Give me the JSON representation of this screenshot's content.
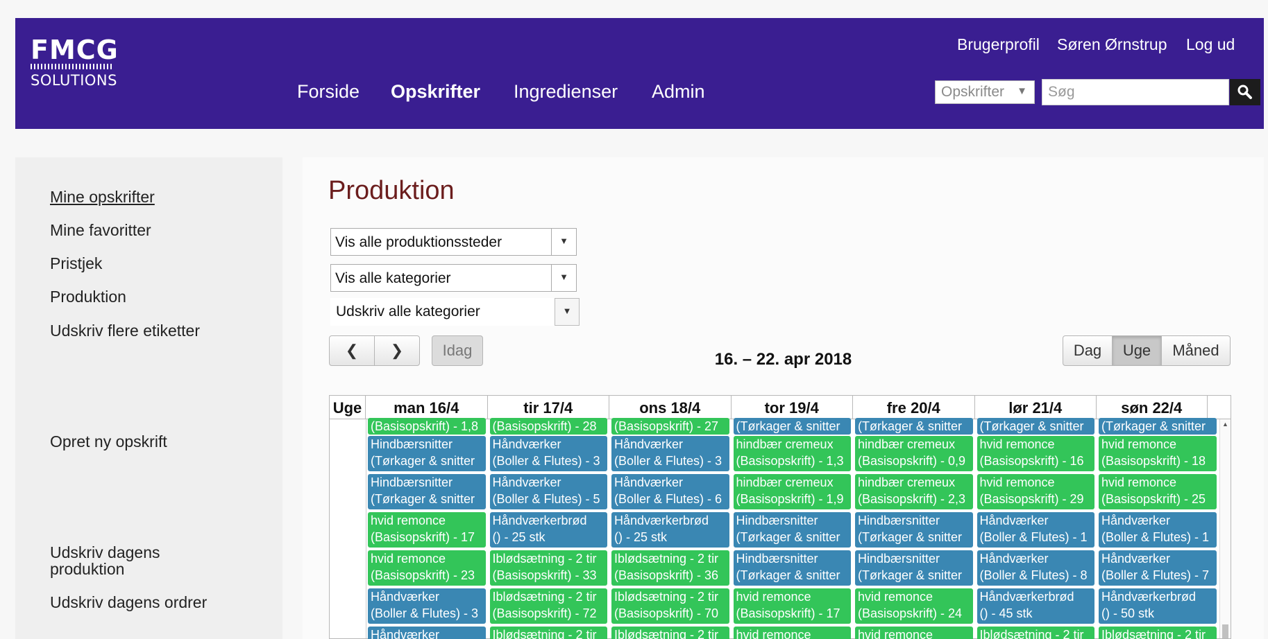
{
  "header": {
    "logo_line1": "FMCG",
    "logo_line2": "SOLUTIONS",
    "nav": [
      "Forside",
      "Opskrifter",
      "Ingredienser",
      "Admin"
    ],
    "active_nav": "Opskrifter",
    "user_links": [
      "Brugerprofil",
      "Søren Ørnstrup",
      "Log ud"
    ],
    "search_scope": "Opskrifter",
    "search_placeholder": "Søg",
    "colors": {
      "bar": "#3a1e91"
    }
  },
  "sidebar": {
    "items": [
      "Mine opskrifter",
      "Mine favoritter",
      "Pristjek",
      "Produktion",
      "Udskriv flere etiketter"
    ],
    "create": "Opret ny opskrift",
    "print_production": "Udskriv dagens produktion",
    "print_orders": "Udskriv dagens ordrer"
  },
  "main": {
    "title": "Produktion",
    "filters": [
      "Vis alle produktionssteder",
      "Vis alle kategorier"
    ],
    "print_filter": "Udskriv alle kategorier",
    "today": "Idag",
    "views": [
      "Dag",
      "Uge",
      "Måned"
    ],
    "active_view": "Uge",
    "range": "16. – 22. apr 2018"
  },
  "calendar": {
    "week_label": "Uge",
    "days": [
      "man 16/4",
      "tir 17/4",
      "ons 18/4",
      "tor 19/4",
      "fre 20/4",
      "lør 21/4",
      "søn 22/4"
    ],
    "colors": {
      "green": "#33c559",
      "blue": "#3a87b3"
    },
    "columns": [
      [
        {
          "c": "green",
          "l1": "(Basisopskrift) - 1,8"
        },
        {
          "c": "blue",
          "l1": "Hindbærsnitter",
          "l2": "(Tørkager & snitter"
        },
        {
          "c": "blue",
          "l1": "Hindbærsnitter",
          "l2": "(Tørkager & snitter"
        },
        {
          "c": "green",
          "l1": "hvid remonce",
          "l2": "(Basisopskrift) - 17"
        },
        {
          "c": "green",
          "l1": "hvid remonce",
          "l2": "(Basisopskrift) - 23"
        },
        {
          "c": "blue",
          "l1": "Håndværker",
          "l2": "(Boller & Flutes) - 3"
        },
        {
          "c": "blue",
          "l1": "Håndværker"
        }
      ],
      [
        {
          "c": "green",
          "l1": "(Basisopskrift) - 28"
        },
        {
          "c": "blue",
          "l1": "Håndværker",
          "l2": "(Boller & Flutes) - 3"
        },
        {
          "c": "blue",
          "l1": "Håndværker",
          "l2": "(Boller & Flutes) - 5"
        },
        {
          "c": "blue",
          "l1": "Håndværkerbrød",
          "l2": "() - 25 stk"
        },
        {
          "c": "green",
          "l1": "Iblødsætning - 2 tir",
          "l2": "(Basisopskrift) - 33"
        },
        {
          "c": "green",
          "l1": "Iblødsætning - 2 tir",
          "l2": "(Basisopskrift) - 72"
        },
        {
          "c": "green",
          "l1": "Iblødsætning - 2 tir"
        }
      ],
      [
        {
          "c": "green",
          "l1": "(Basisopskrift) - 27"
        },
        {
          "c": "blue",
          "l1": "Håndværker",
          "l2": "(Boller & Flutes) - 3"
        },
        {
          "c": "blue",
          "l1": "Håndværker",
          "l2": "(Boller & Flutes) - 6"
        },
        {
          "c": "blue",
          "l1": "Håndværkerbrød",
          "l2": "() - 25 stk"
        },
        {
          "c": "green",
          "l1": "Iblødsætning - 2 tir",
          "l2": "(Basisopskrift) - 36"
        },
        {
          "c": "green",
          "l1": "Iblødsætning - 2 tir",
          "l2": "(Basisopskrift) - 70"
        },
        {
          "c": "green",
          "l1": "Iblødsætning - 2 tir"
        }
      ],
      [
        {
          "c": "blue",
          "l1": "(Tørkager & snitter"
        },
        {
          "c": "green",
          "l1": "hindbær cremeux",
          "l2": "(Basisopskrift) - 1,3"
        },
        {
          "c": "green",
          "l1": "hindbær cremeux",
          "l2": "(Basisopskrift) - 1,9"
        },
        {
          "c": "blue",
          "l1": "Hindbærsnitter",
          "l2": "(Tørkager & snitter"
        },
        {
          "c": "blue",
          "l1": "Hindbærsnitter",
          "l2": "(Tørkager & snitter"
        },
        {
          "c": "green",
          "l1": "hvid remonce",
          "l2": "(Basisopskrift) - 17"
        },
        {
          "c": "green",
          "l1": "hvid remonce"
        }
      ],
      [
        {
          "c": "blue",
          "l1": "(Tørkager & snitter"
        },
        {
          "c": "green",
          "l1": "hindbær cremeux",
          "l2": "(Basisopskrift) - 0,9"
        },
        {
          "c": "green",
          "l1": "hindbær cremeux",
          "l2": "(Basisopskrift) - 2,3"
        },
        {
          "c": "blue",
          "l1": "Hindbærsnitter",
          "l2": "(Tørkager & snitter"
        },
        {
          "c": "blue",
          "l1": "Hindbærsnitter",
          "l2": "(Tørkager & snitter"
        },
        {
          "c": "green",
          "l1": "hvid remonce",
          "l2": "(Basisopskrift) - 24"
        },
        {
          "c": "green",
          "l1": "hvid remonce"
        }
      ],
      [
        {
          "c": "blue",
          "l1": "(Tørkager & snitter"
        },
        {
          "c": "green",
          "l1": "hvid remonce",
          "l2": "(Basisopskrift) - 16"
        },
        {
          "c": "green",
          "l1": "hvid remonce",
          "l2": "(Basisopskrift) - 29"
        },
        {
          "c": "blue",
          "l1": "Håndværker",
          "l2": "(Boller & Flutes) - 1"
        },
        {
          "c": "blue",
          "l1": "Håndværker",
          "l2": "(Boller & Flutes) - 8"
        },
        {
          "c": "blue",
          "l1": "Håndværkerbrød",
          "l2": "() - 45 stk"
        },
        {
          "c": "green",
          "l1": "Iblødsætning - 2 tir"
        }
      ],
      [
        {
          "c": "blue",
          "l1": "(Tørkager & snitter"
        },
        {
          "c": "green",
          "l1": "hvid remonce",
          "l2": "(Basisopskrift) - 18"
        },
        {
          "c": "green",
          "l1": "hvid remonce",
          "l2": "(Basisopskrift) - 25"
        },
        {
          "c": "blue",
          "l1": "Håndværker",
          "l2": "(Boller & Flutes) - 1"
        },
        {
          "c": "blue",
          "l1": "Håndværker",
          "l2": "(Boller & Flutes) - 7"
        },
        {
          "c": "blue",
          "l1": "Håndværkerbrød",
          "l2": "() - 50 stk"
        },
        {
          "c": "green",
          "l1": "Iblødsætning - 2 tir"
        }
      ]
    ]
  }
}
